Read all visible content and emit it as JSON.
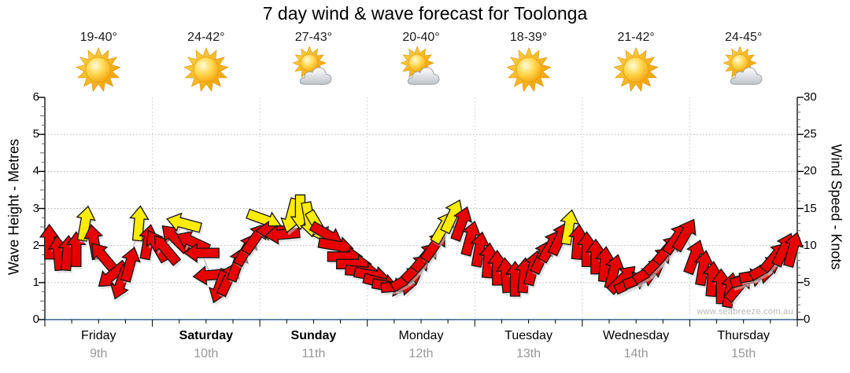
{
  "watermark": "www.seabreeze.com.au",
  "colors": {
    "arrow_red": "#e60000",
    "arrow_yellow": "#ffec00",
    "arrow_outline": "#141414",
    "arrow_shadow": "#d2d2d2",
    "axis_x_line": "#2e618f",
    "axis_y_line": "#000000",
    "grid_dotted": "#b5b5b5",
    "day_separator": "#c9c9c9",
    "date_label": "#979797",
    "watermark": "#b8b8b8"
  },
  "chart_data": {
    "type": "wind-arrow-forecast",
    "title": "7 day wind & wave forecast for Toolonga",
    "y_left": {
      "label": "Wave Height - Metres",
      "min": 0,
      "max": 6,
      "ticks": [
        0,
        1,
        2,
        3,
        4,
        5,
        6
      ]
    },
    "y_right": {
      "label": "Wind Speed - Knots",
      "min": 0,
      "max": 30,
      "ticks": [
        0,
        5,
        10,
        15,
        20,
        25,
        30
      ]
    },
    "grid": "dotted horizontal every 1 m / 5 kn, dotted vertical at day boundaries",
    "sample_interval_hours": 2,
    "dir_deg_convention": "direction arrow points, 0 = up, clockwise",
    "days": [
      {
        "name": "Friday",
        "date": "9th",
        "bold": false,
        "temp_range": "19-40°",
        "icon": "sunny",
        "wind": {
          "knots": [
            10.5,
            9,
            9,
            9.5,
            13,
            10.5,
            8.5,
            6,
            5,
            7.5,
            13,
            10.5
          ],
          "dir_deg": [
            0,
            355,
            5,
            0,
            10,
            350,
            320,
            230,
            200,
            15,
            5,
            10
          ],
          "color": [
            "red",
            "red",
            "red",
            "red",
            "yellow",
            "red",
            "red",
            "red",
            "red",
            "red",
            "yellow",
            "red"
          ]
        }
      },
      {
        "name": "Saturday",
        "date": "10th",
        "bold": true,
        "temp_range": "24-42°",
        "icon": "sunny",
        "wind": {
          "knots": [
            10,
            9.5,
            11,
            13,
            10.5,
            9,
            6,
            4.5,
            5.5,
            7.5,
            9.5,
            11
          ],
          "dir_deg": [
            330,
            320,
            315,
            285,
            295,
            270,
            265,
            200,
            25,
            20,
            30,
            35
          ],
          "color": [
            "red",
            "red",
            "red",
            "yellow",
            "red",
            "red",
            "red",
            "red",
            "red",
            "red",
            "red",
            "red"
          ]
        }
      },
      {
        "name": "Sunday",
        "date": "11th",
        "bold": true,
        "temp_range": "27-43°",
        "icon": "partly-cloudy",
        "wind": {
          "knots": [
            13.5,
            12,
            11.5,
            14,
            14.5,
            13.5,
            12.5,
            11.5,
            10,
            8.5,
            7.5,
            6.5
          ],
          "dir_deg": [
            110,
            270,
            265,
            195,
            180,
            170,
            150,
            120,
            100,
            90,
            90,
            95
          ],
          "color": [
            "yellow",
            "red",
            "red",
            "yellow",
            "yellow",
            "yellow",
            "yellow",
            "red",
            "red",
            "red",
            "red",
            "red"
          ]
        }
      },
      {
        "name": "Monday",
        "date": "12th",
        "bold": false,
        "temp_range": "20-40°",
        "icon": "partly-cloudy",
        "wind": {
          "knots": [
            6,
            5,
            4.5,
            4.5,
            5.5,
            7,
            8.5,
            10,
            12.5,
            14,
            13,
            11
          ],
          "dir_deg": [
            100,
            105,
            100,
            85,
            60,
            45,
            40,
            35,
            30,
            25,
            20,
            15
          ],
          "color": [
            "red",
            "red",
            "red",
            "red",
            "red",
            "red",
            "red",
            "red",
            "yellow",
            "yellow",
            "red",
            "red"
          ]
        }
      },
      {
        "name": "Tuesday",
        "date": "13th",
        "bold": false,
        "temp_range": "18-39°",
        "icon": "sunny",
        "wind": {
          "knots": [
            9.5,
            8,
            7,
            6,
            5.5,
            6,
            7,
            8.5,
            10,
            11,
            12.5,
            10.5
          ],
          "dir_deg": [
            10,
            5,
            0,
            355,
            0,
            5,
            15,
            25,
            30,
            25,
            10,
            5
          ],
          "color": [
            "red",
            "red",
            "red",
            "red",
            "red",
            "red",
            "red",
            "red",
            "red",
            "red",
            "yellow",
            "red"
          ]
        }
      },
      {
        "name": "Wednesday",
        "date": "14th",
        "bold": false,
        "temp_range": "21-42°",
        "icon": "sunny",
        "wind": {
          "knots": [
            9.5,
            8.5,
            7.5,
            6.5,
            5.5,
            5,
            5.5,
            6.5,
            8,
            9.5,
            11,
            11.5
          ],
          "dir_deg": [
            0,
            0,
            5,
            15,
            45,
            65,
            70,
            60,
            45,
            40,
            35,
            30
          ],
          "color": [
            "red",
            "red",
            "red",
            "red",
            "red",
            "red",
            "red",
            "red",
            "red",
            "red",
            "red",
            "red"
          ]
        }
      },
      {
        "name": "Thursday",
        "date": "15th",
        "bold": false,
        "temp_range": "24-45°",
        "icon": "partly-cloudy",
        "wind": {
          "knots": [
            8.5,
            7,
            5.5,
            4.5,
            4,
            4.5,
            5.5,
            6,
            7,
            8.5,
            9.5,
            9.5
          ],
          "dir_deg": [
            20,
            10,
            5,
            0,
            10,
            40,
            75,
            80,
            60,
            40,
            25,
            15
          ],
          "color": [
            "red",
            "red",
            "red",
            "red",
            "red",
            "red",
            "red",
            "red",
            "red",
            "red",
            "red",
            "red"
          ]
        }
      }
    ]
  }
}
